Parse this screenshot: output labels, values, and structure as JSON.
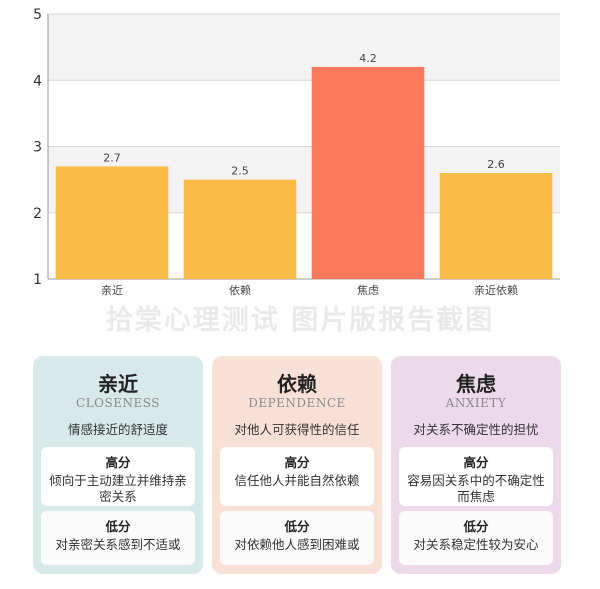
{
  "chart_data": {
    "type": "bar",
    "categories": [
      "亲近",
      "依赖",
      "焦虑",
      "亲近依赖"
    ],
    "values": [
      2.7,
      2.5,
      4.2,
      2.6
    ],
    "data_labels": [
      "2.7",
      "2.5",
      "4.2",
      "2.6"
    ],
    "bar_colors": [
      "#fbbb47",
      "#fbbb47",
      "#fe7a5d",
      "#fbbb47"
    ],
    "ylim": [
      1,
      5
    ],
    "yticks": [
      1,
      2,
      3,
      4,
      5
    ],
    "title": "",
    "xlabel": "",
    "ylabel": "",
    "grid": true,
    "legend": "none"
  },
  "watermark": "拾棠心理测试 图片版报告截图",
  "cards": [
    {
      "title": "亲近",
      "subtitle": "CLOSENESS",
      "desc": "情感接近的舒适度",
      "high_head": "高分",
      "high_text": "倾向于主动建立并维持亲密关系",
      "low_head": "低分",
      "low_text": "对亲密关系感到不适或",
      "color": "#d7e9e9"
    },
    {
      "title": "依赖",
      "subtitle": "DEPENDENCE",
      "desc": "对他人可获得性的信任",
      "high_head": "高分",
      "high_text": "信任他人并能自然依赖",
      "low_head": "低分",
      "low_text": "对依赖他人感到困难或",
      "color": "#f8e0d7"
    },
    {
      "title": "焦虑",
      "subtitle": "ANXIETY",
      "desc": "对关系不确定性的担忧",
      "high_head": "高分",
      "high_text": "容易因关系中的不确定性而焦虑",
      "low_head": "低分",
      "low_text": "对关系稳定性较为安心",
      "color": "#ecdaea"
    }
  ]
}
